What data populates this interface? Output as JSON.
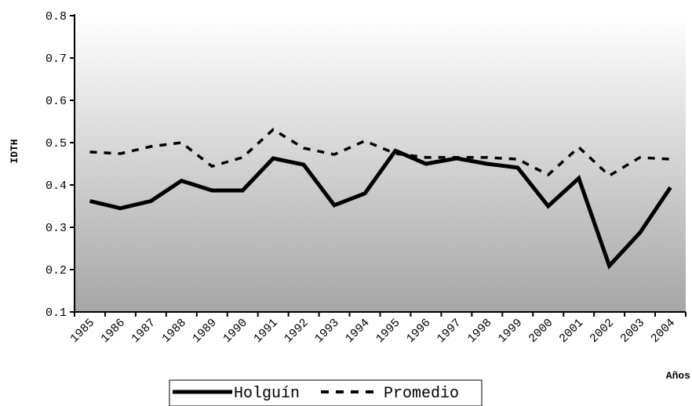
{
  "chart_data": {
    "type": "line",
    "title": "",
    "xlabel": "Años",
    "ylabel": "IDTH",
    "ylim": [
      0.1,
      0.8
    ],
    "yticks": [
      "0.1",
      "0.2",
      "0.3",
      "0.4",
      "0.5",
      "0.6",
      "0.7",
      "0.8"
    ],
    "grid": false,
    "legend_position": "bottom",
    "background": "gradient white-to-gray",
    "categories": [
      "1985",
      "1986",
      "1987",
      "1988",
      "1989",
      "1990",
      "1991",
      "1992",
      "1993",
      "1994",
      "1995",
      "1996",
      "1997",
      "1998",
      "1999",
      "2000",
      "2001",
      "2002",
      "2003",
      "2004"
    ],
    "series": [
      {
        "name": "Holguín",
        "style": "solid",
        "color": "#000000",
        "values": [
          0.362,
          0.345,
          0.362,
          0.41,
          0.387,
          0.387,
          0.463,
          0.448,
          0.352,
          0.38,
          0.481,
          0.45,
          0.463,
          0.45,
          0.441,
          0.35,
          0.416,
          0.209,
          0.287,
          0.394
        ]
      },
      {
        "name": "Promedio",
        "style": "dashed",
        "color": "#000000",
        "values": [
          0.478,
          0.474,
          0.491,
          0.5,
          0.444,
          0.465,
          0.531,
          0.487,
          0.472,
          0.504,
          0.474,
          0.465,
          0.465,
          0.465,
          0.461,
          0.424,
          0.489,
          0.422,
          0.465,
          0.461
        ]
      }
    ]
  }
}
